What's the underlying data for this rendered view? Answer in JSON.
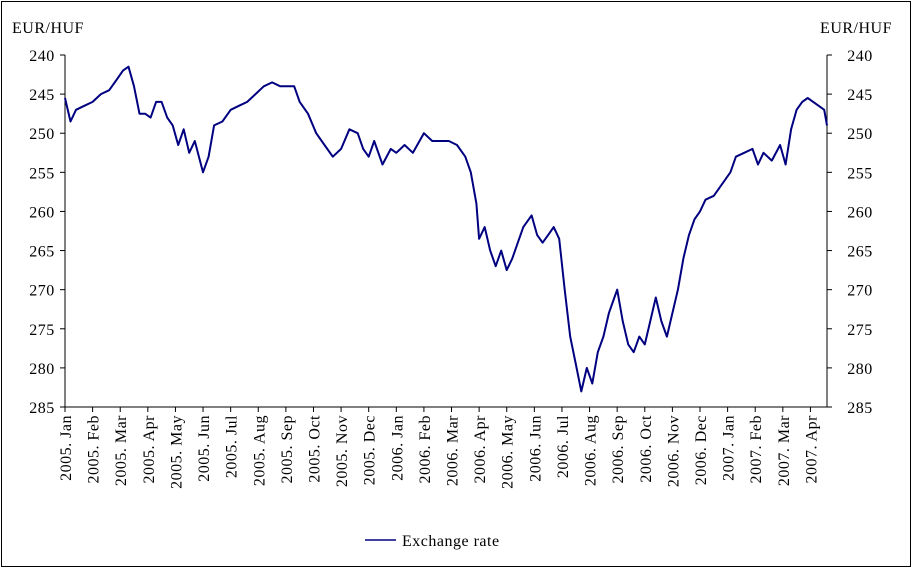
{
  "chart_data": {
    "type": "line",
    "y_label": "EUR/HUF",
    "y2_label": "EUR/HUF",
    "xlim": [
      0,
      27.6
    ],
    "xticks": [
      {
        "value": 0,
        "label": "2005. Jan"
      },
      {
        "value": 1,
        "label": "2005. Feb"
      },
      {
        "value": 2,
        "label": "2005. Mar"
      },
      {
        "value": 3,
        "label": "2005. Apr"
      },
      {
        "value": 4,
        "label": "2005. May"
      },
      {
        "value": 5,
        "label": "2005. Jun"
      },
      {
        "value": 6,
        "label": "2005. Jul"
      },
      {
        "value": 7,
        "label": "2005. Aug"
      },
      {
        "value": 8,
        "label": "2005. Sep"
      },
      {
        "value": 9,
        "label": "2005. Oct"
      },
      {
        "value": 10,
        "label": "2005. Nov"
      },
      {
        "value": 11,
        "label": "2005. Dec"
      },
      {
        "value": 12,
        "label": "2006. Jan"
      },
      {
        "value": 13,
        "label": "2006. Feb"
      },
      {
        "value": 14,
        "label": "2006. Mar"
      },
      {
        "value": 15,
        "label": "2006. Apr"
      },
      {
        "value": 16,
        "label": "2006. May"
      },
      {
        "value": 17,
        "label": "2006. Jun"
      },
      {
        "value": 18,
        "label": "2006. Jul"
      },
      {
        "value": 19,
        "label": "2006. Aug"
      },
      {
        "value": 20,
        "label": "2006. Sep"
      },
      {
        "value": 21,
        "label": "2006. Oct"
      },
      {
        "value": 22,
        "label": "2006. Nov"
      },
      {
        "value": 23,
        "label": "2006. Dec"
      },
      {
        "value": 24,
        "label": "2007. Jan"
      },
      {
        "value": 25,
        "label": "2007. Feb"
      },
      {
        "value": 26,
        "label": "2007. Mar"
      },
      {
        "value": 27,
        "label": "2007. Apr"
      }
    ],
    "ylim": [
      285,
      240
    ],
    "yticks": [
      240,
      245,
      250,
      255,
      260,
      265,
      270,
      275,
      280,
      285
    ],
    "y2lim": [
      285,
      240
    ],
    "y2ticks": [
      240,
      245,
      250,
      255,
      260,
      265,
      270,
      275,
      280,
      285
    ],
    "legend": "bottom",
    "x": [
      0,
      0.2,
      0.4,
      0.7,
      1.0,
      1.3,
      1.6,
      1.9,
      2.1,
      2.3,
      2.5,
      2.7,
      2.9,
      3.1,
      3.3,
      3.5,
      3.7,
      3.9,
      4.1,
      4.3,
      4.5,
      4.7,
      5.0,
      5.2,
      5.4,
      5.7,
      6.0,
      6.3,
      6.6,
      6.9,
      7.2,
      7.5,
      7.8,
      8.1,
      8.3,
      8.5,
      8.8,
      9.1,
      9.4,
      9.7,
      10.0,
      10.3,
      10.6,
      10.8,
      11.0,
      11.2,
      11.5,
      11.8,
      12.0,
      12.3,
      12.6,
      13.0,
      13.3,
      13.6,
      13.9,
      14.2,
      14.5,
      14.7,
      14.9,
      15.0,
      15.2,
      15.4,
      15.6,
      15.8,
      16.0,
      16.2,
      16.4,
      16.6,
      16.9,
      17.1,
      17.3,
      17.5,
      17.7,
      17.9,
      18.1,
      18.3,
      18.5,
      18.7,
      18.9,
      19.1,
      19.3,
      19.5,
      19.7,
      19.9,
      20.0,
      20.2,
      20.4,
      20.6,
      20.8,
      21.0,
      21.2,
      21.4,
      21.6,
      21.8,
      22.0,
      22.2,
      22.4,
      22.6,
      22.8,
      23.0,
      23.2,
      23.5,
      23.8,
      24.1,
      24.3,
      24.6,
      24.9,
      25.1,
      25.3,
      25.6,
      25.9,
      26.1,
      26.3,
      26.5,
      26.7,
      26.9,
      27.1,
      27.3,
      27.5,
      27.6
    ],
    "series": [
      {
        "name": "Exchange rate",
        "color": "#000080",
        "values": [
          245.5,
          248.5,
          247,
          246.5,
          246,
          245,
          244.5,
          243,
          242,
          241.5,
          244,
          247.5,
          247.5,
          248,
          246,
          246,
          248,
          249,
          251.5,
          249.5,
          252.5,
          251,
          255,
          253,
          249,
          248.5,
          247,
          246.5,
          246,
          245,
          244,
          243.5,
          244,
          244,
          244,
          246,
          247.5,
          250,
          251.5,
          253,
          252,
          249.5,
          250,
          252,
          253,
          251,
          254,
          252,
          252.5,
          251.5,
          252.5,
          250,
          251,
          251,
          251,
          251.5,
          253,
          255,
          259,
          263.5,
          262,
          265,
          267,
          265,
          267.5,
          266,
          264,
          262,
          260.5,
          263,
          264,
          263,
          262,
          263.5,
          270,
          276,
          279.5,
          283,
          280,
          282,
          278,
          276,
          273,
          271,
          270,
          274,
          277,
          278,
          276,
          277,
          274,
          271,
          274,
          276,
          273,
          270,
          266,
          263,
          261,
          260,
          258.5,
          258,
          256.5,
          255,
          253,
          252.5,
          252,
          254,
          252.5,
          253.5,
          251.5,
          254,
          249.5,
          247,
          246,
          245.5,
          246,
          246.5,
          247,
          249
        ]
      }
    ]
  }
}
